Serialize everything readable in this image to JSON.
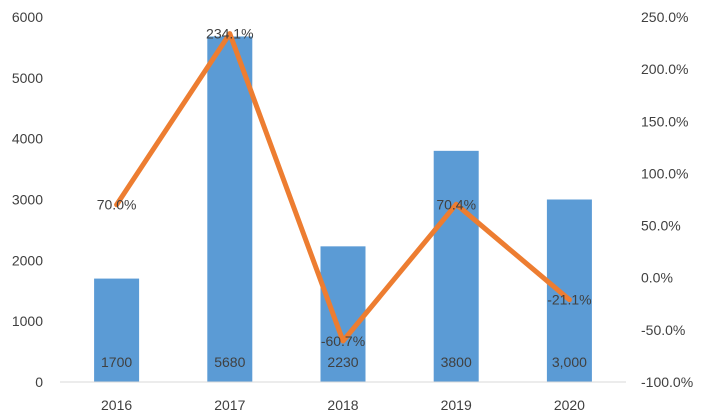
{
  "chart_data": {
    "type": "bar+line",
    "categories": [
      "2016",
      "2017",
      "2018",
      "2019",
      "2020"
    ],
    "series": [
      {
        "type": "bar",
        "axis": "left",
        "values": [
          1700,
          5680,
          2230,
          3800,
          3000
        ],
        "data_labels": [
          "1700",
          "5680",
          "2230",
          "3800",
          "3,000"
        ],
        "color": "#5B9BD5"
      },
      {
        "type": "line",
        "axis": "right",
        "values": [
          70.0,
          234.1,
          -60.7,
          70.4,
          -21.1
        ],
        "data_labels": [
          "70.0%",
          "234.1%",
          "-60.7%",
          "70.4%",
          "-21.1%"
        ],
        "color": "#ED7D31"
      }
    ],
    "y_left": {
      "range": [
        0,
        6000
      ],
      "ticks": [
        "0",
        "1000",
        "2000",
        "3000",
        "4000",
        "5000",
        "6000"
      ]
    },
    "y_right": {
      "range": [
        -100,
        250
      ],
      "ticks": [
        "-100.0%",
        "-50.0%",
        "0.0%",
        "50.0%",
        "100.0%",
        "150.0%",
        "200.0%",
        "250.0%"
      ]
    },
    "grid": false,
    "legend": "none"
  }
}
